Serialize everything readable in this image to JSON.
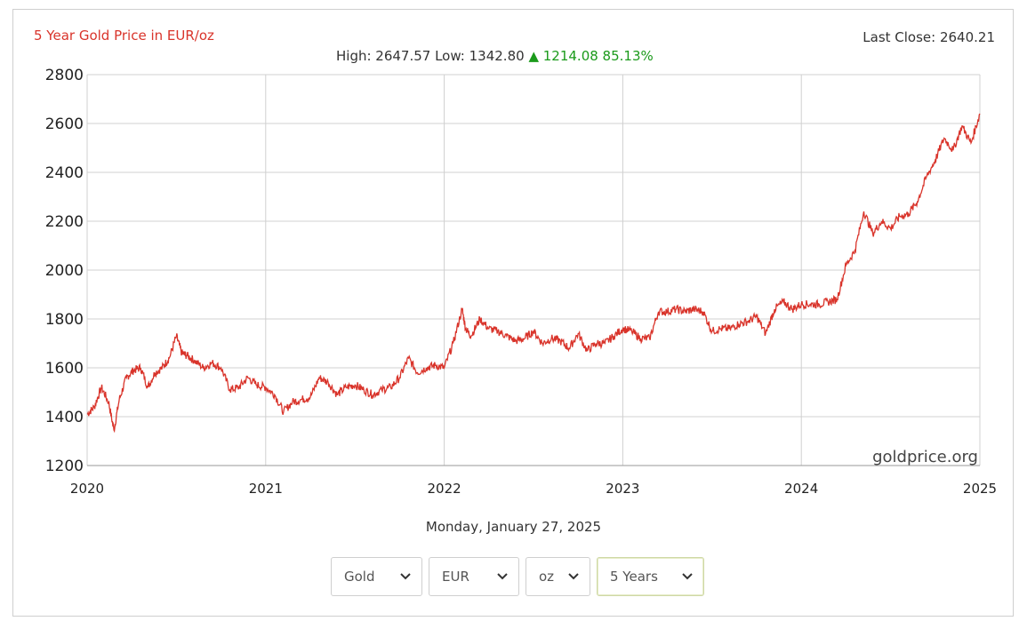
{
  "header": {
    "title": "5 Year Gold Price in EUR/oz",
    "last_close": "Last Close: 2640.21",
    "stats_prefix": "High: 2647.57 Low: 1342.80",
    "stats_change": "▲ 1214.08 85.13%"
  },
  "date_text": "Monday, January 27, 2025",
  "watermark": "goldprice.org",
  "controls": [
    {
      "label": "Gold"
    },
    {
      "label": "EUR"
    },
    {
      "label": "oz"
    },
    {
      "label": "5 Years"
    }
  ],
  "colors": {
    "line": "#d9342b",
    "title": "#d9342b",
    "up": "#1b9a1b",
    "grid": "#d0d0d0"
  },
  "chart_data": {
    "type": "line",
    "title": "5 Year Gold Price in EUR/oz",
    "xlabel": "",
    "ylabel": "",
    "xlim": [
      2020.0,
      2025.0
    ],
    "ylim": [
      1200,
      2800
    ],
    "x_ticks": [
      "2020",
      "2021",
      "2022",
      "2023",
      "2024",
      "2025"
    ],
    "y_ticks": [
      1200,
      1400,
      1600,
      1800,
      2000,
      2200,
      2400,
      2600,
      2800
    ],
    "grid": true,
    "series": [
      {
        "x": [
          2020.0,
          2020.04,
          2020.08,
          2020.12,
          2020.15,
          2020.18,
          2020.22,
          2020.26,
          2020.3,
          2020.34,
          2020.38,
          2020.42,
          2020.46,
          2020.5,
          2020.53,
          2020.56,
          2020.6,
          2020.65,
          2020.7,
          2020.75,
          2020.8,
          2020.85,
          2020.9,
          2020.95,
          2021.0,
          2021.05,
          2021.1,
          2021.15,
          2021.2,
          2021.25,
          2021.3,
          2021.35,
          2021.4,
          2021.45,
          2021.5,
          2021.55,
          2021.6,
          2021.65,
          2021.7,
          2021.75,
          2021.8,
          2021.85,
          2021.9,
          2021.95,
          2022.0,
          2022.05,
          2022.1,
          2022.12,
          2022.15,
          2022.2,
          2022.25,
          2022.3,
          2022.35,
          2022.4,
          2022.45,
          2022.5,
          2022.55,
          2022.6,
          2022.65,
          2022.7,
          2022.75,
          2022.8,
          2022.85,
          2022.9,
          2022.95,
          2023.0,
          2023.05,
          2023.1,
          2023.15,
          2023.2,
          2023.25,
          2023.3,
          2023.35,
          2023.4,
          2023.45,
          2023.5,
          2023.55,
          2023.6,
          2023.65,
          2023.7,
          2023.75,
          2023.8,
          2023.85,
          2023.9,
          2023.95,
          2024.0,
          2024.05,
          2024.1,
          2024.15,
          2024.2,
          2024.25,
          2024.3,
          2024.35,
          2024.4,
          2024.45,
          2024.5,
          2024.55,
          2024.6,
          2024.65,
          2024.7,
          2024.75,
          2024.8,
          2024.85,
          2024.9,
          2024.95,
          2025.0
        ],
        "values": [
          1410,
          1440,
          1520,
          1460,
          1345,
          1470,
          1560,
          1590,
          1600,
          1520,
          1580,
          1600,
          1640,
          1730,
          1660,
          1650,
          1630,
          1600,
          1620,
          1600,
          1510,
          1520,
          1560,
          1530,
          1520,
          1490,
          1420,
          1460,
          1470,
          1480,
          1560,
          1540,
          1490,
          1520,
          1530,
          1510,
          1490,
          1510,
          1520,
          1560,
          1640,
          1580,
          1600,
          1610,
          1600,
          1700,
          1840,
          1760,
          1730,
          1800,
          1760,
          1750,
          1730,
          1710,
          1720,
          1750,
          1700,
          1720,
          1710,
          1680,
          1740,
          1670,
          1700,
          1700,
          1730,
          1760,
          1750,
          1720,
          1720,
          1830,
          1830,
          1840,
          1830,
          1840,
          1830,
          1750,
          1760,
          1760,
          1780,
          1790,
          1810,
          1740,
          1840,
          1870,
          1840,
          1860,
          1860,
          1860,
          1870,
          1880,
          2020,
          2080,
          2240,
          2150,
          2200,
          2170,
          2220,
          2230,
          2280,
          2380,
          2450,
          2540,
          2490,
          2590,
          2520,
          2640
        ]
      }
    ]
  }
}
